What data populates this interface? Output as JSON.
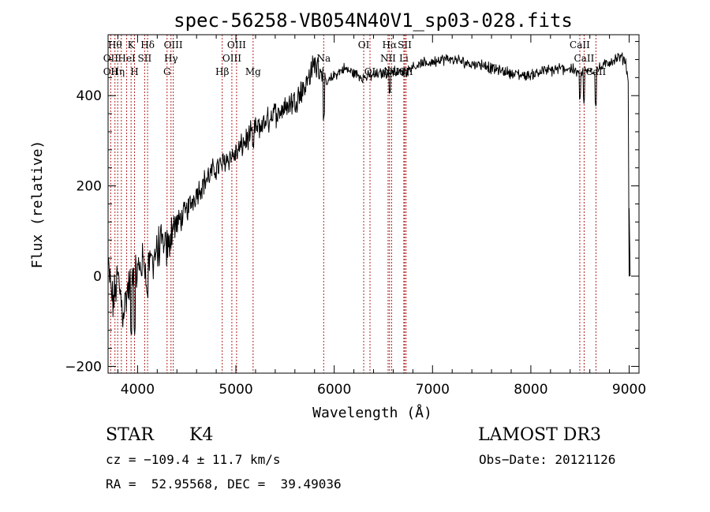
{
  "chart_data": {
    "type": "line",
    "title": "spec-56258-VB054N40V1_sp03-028.fits",
    "xlabel": "Wavelength (Å)",
    "ylabel": "Flux (relative)",
    "xlim": [
      3700,
      9100
    ],
    "ylim": [
      -215,
      535
    ],
    "xticks": [
      4000,
      5000,
      6000,
      7000,
      8000,
      9000
    ],
    "xtick_labels": [
      "4000",
      "5000",
      "6000",
      "7000",
      "8000",
      "9000"
    ],
    "yticks": [
      -200,
      0,
      200,
      400
    ],
    "ytick_labels": [
      "−200",
      "0",
      "200",
      "400"
    ],
    "spectrum_anchors": [
      [
        3700,
        20
      ],
      [
        3750,
        -60
      ],
      [
        3800,
        0
      ],
      [
        3850,
        -80
      ],
      [
        3900,
        -30
      ],
      [
        3950,
        0
      ],
      [
        4000,
        10
      ],
      [
        4050,
        30
      ],
      [
        4100,
        20
      ],
      [
        4150,
        40
      ],
      [
        4200,
        55
      ],
      [
        4250,
        70
      ],
      [
        4300,
        60
      ],
      [
        4350,
        110
      ],
      [
        4400,
        115
      ],
      [
        4500,
        145
      ],
      [
        4600,
        185
      ],
      [
        4700,
        215
      ],
      [
        4800,
        240
      ],
      [
        4850,
        245
      ],
      [
        4900,
        260
      ],
      [
        5000,
        270
      ],
      [
        5100,
        300
      ],
      [
        5200,
        325
      ],
      [
        5300,
        340
      ],
      [
        5400,
        360
      ],
      [
        5500,
        375
      ],
      [
        5600,
        390
      ],
      [
        5700,
        420
      ],
      [
        5800,
        470
      ],
      [
        5880,
        455
      ],
      [
        5920,
        425
      ],
      [
        6000,
        445
      ],
      [
        6100,
        460
      ],
      [
        6200,
        450
      ],
      [
        6300,
        440
      ],
      [
        6400,
        445
      ],
      [
        6500,
        450
      ],
      [
        6600,
        455
      ],
      [
        6700,
        450
      ],
      [
        6800,
        465
      ],
      [
        6900,
        470
      ],
      [
        7000,
        475
      ],
      [
        7100,
        480
      ],
      [
        7200,
        480
      ],
      [
        7300,
        475
      ],
      [
        7400,
        470
      ],
      [
        7500,
        470
      ],
      [
        7600,
        460
      ],
      [
        7700,
        455
      ],
      [
        7800,
        450
      ],
      [
        7900,
        445
      ],
      [
        8000,
        445
      ],
      [
        8100,
        455
      ],
      [
        8200,
        455
      ],
      [
        8300,
        460
      ],
      [
        8400,
        460
      ],
      [
        8500,
        450
      ],
      [
        8600,
        455
      ],
      [
        8700,
        460
      ],
      [
        8800,
        475
      ],
      [
        8900,
        485
      ],
      [
        8960,
        480
      ],
      [
        9000,
        420
      ]
    ],
    "spectrum_tail": [
      [
        9000,
        0
      ],
      [
        9000,
        150
      ],
      [
        9010,
        0
      ]
    ],
    "spectrum_dips": [
      [
        3934,
        -140
      ],
      [
        3969,
        -130
      ],
      [
        4102,
        -50
      ],
      [
        4308,
        80
      ],
      [
        5175,
        280
      ],
      [
        5893,
        345
      ],
      [
        6563,
        400
      ],
      [
        8498,
        390
      ],
      [
        8542,
        380
      ],
      [
        8662,
        375
      ]
    ],
    "line_markers": [
      {
        "wl": 3727,
        "top": "",
        "mid": "OII",
        "bot": "OII"
      },
      {
        "wl": 3770,
        "top": "Hθ",
        "mid": "",
        "bot": ""
      },
      {
        "wl": 3798,
        "top": "",
        "mid": "",
        "bot": "Hη"
      },
      {
        "wl": 3835,
        "top": "",
        "mid": "",
        "bot": ""
      },
      {
        "wl": 3889,
        "top": "",
        "mid": "HeI",
        "bot": ""
      },
      {
        "wl": 3934,
        "top": "K",
        "mid": "",
        "bot": ""
      },
      {
        "wl": 3969,
        "top": "",
        "mid": "",
        "bot": "H"
      },
      {
        "wl": 4072,
        "top": "",
        "mid": "SII",
        "bot": ""
      },
      {
        "wl": 4102,
        "top": "Hδ",
        "mid": "",
        "bot": ""
      },
      {
        "wl": 4300,
        "top": "",
        "mid": "",
        "bot": "G"
      },
      {
        "wl": 4340,
        "top": "",
        "mid": "Hγ",
        "bot": ""
      },
      {
        "wl": 4363,
        "top": "OIII",
        "mid": "",
        "bot": ""
      },
      {
        "wl": 4861,
        "top": "",
        "mid": "",
        "bot": "Hβ"
      },
      {
        "wl": 4959,
        "top": "",
        "mid": "OIII",
        "bot": ""
      },
      {
        "wl": 5007,
        "top": "OIII",
        "mid": "",
        "bot": ""
      },
      {
        "wl": 5175,
        "top": "",
        "mid": "",
        "bot": "Mg"
      },
      {
        "wl": 5893,
        "top": "",
        "mid": "Na",
        "bot": ""
      },
      {
        "wl": 6300,
        "top": "OI",
        "mid": "",
        "bot": ""
      },
      {
        "wl": 6364,
        "top": "",
        "mid": "",
        "bot": "OI"
      },
      {
        "wl": 6548,
        "top": "",
        "mid": "NII",
        "bot": ""
      },
      {
        "wl": 6563,
        "top": "Hα",
        "mid": "",
        "bot": ""
      },
      {
        "wl": 6584,
        "top": "",
        "mid": "",
        "bot": "NII"
      },
      {
        "wl": 6708,
        "top": "",
        "mid": "Li",
        "bot": ""
      },
      {
        "wl": 6717,
        "top": "SII",
        "mid": "",
        "bot": ""
      },
      {
        "wl": 6731,
        "top": "",
        "mid": "",
        "bot": "SII"
      },
      {
        "wl": 8498,
        "top": "CaII",
        "mid": "",
        "bot": ""
      },
      {
        "wl": 8542,
        "top": "",
        "mid": "CaII",
        "bot": ""
      },
      {
        "wl": 8662,
        "top": "",
        "mid": "",
        "bot": "CaII"
      }
    ]
  },
  "info": {
    "object_class": "STAR",
    "subclass": "K4",
    "survey": "LAMOST DR3",
    "cz": "cz = −109.4 ± 11.7 km/s",
    "obs_date": "Obs−Date: 20121126",
    "coords": "RA =  52.95568, DEC =  39.49036"
  },
  "colors": {
    "spectrum": "#000000",
    "line_marker": "#b22222",
    "axis": "#000000",
    "background": "#ffffff"
  }
}
